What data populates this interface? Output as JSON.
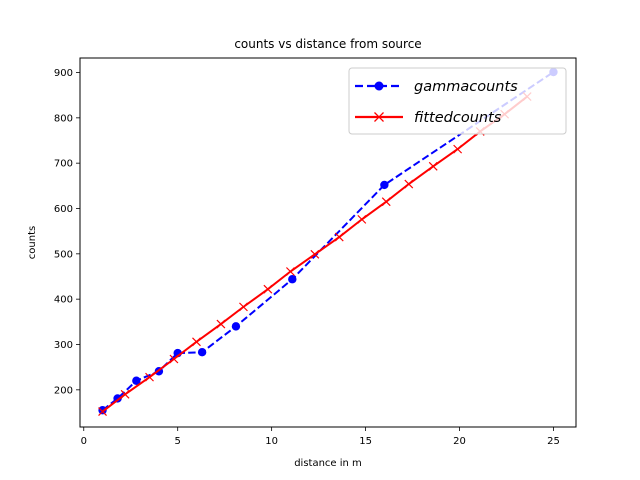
{
  "chart_data": {
    "type": "line",
    "title": "counts vs distance from source",
    "xlabel": "distance in m",
    "ylabel": "counts",
    "xlim": [
      -0.2,
      26.2
    ],
    "ylim": [
      118,
      932
    ],
    "xticks": [
      0,
      5,
      10,
      15,
      20,
      25
    ],
    "yticks": [
      200,
      300,
      400,
      500,
      600,
      700,
      800,
      900
    ],
    "grid": false,
    "legend_position": "top-right",
    "series": [
      {
        "name": "gammacounts",
        "color": "#0000ff",
        "linestyle": "dashed",
        "marker": "circle",
        "x": [
          1.0,
          1.8,
          2.8,
          4.0,
          5.0,
          6.3,
          8.1,
          11.1,
          16.0,
          25.0
        ],
        "y": [
          155,
          181,
          220,
          241,
          281,
          283,
          340,
          444,
          652,
          901
        ]
      },
      {
        "name": "fittedcounts",
        "color": "#ff0000",
        "linestyle": "solid",
        "marker": "x",
        "x": [
          1.0,
          2.2,
          3.5,
          4.8,
          6.0,
          7.3,
          8.5,
          9.8,
          11.0,
          12.3,
          13.6,
          14.8,
          16.1,
          17.3,
          18.6,
          19.9,
          21.1,
          22.4,
          23.6
        ],
        "y": [
          152,
          190,
          228,
          268,
          306,
          345,
          383,
          422,
          461,
          499,
          537,
          576,
          615,
          654,
          693,
          731,
          770,
          808,
          847
        ]
      }
    ]
  }
}
